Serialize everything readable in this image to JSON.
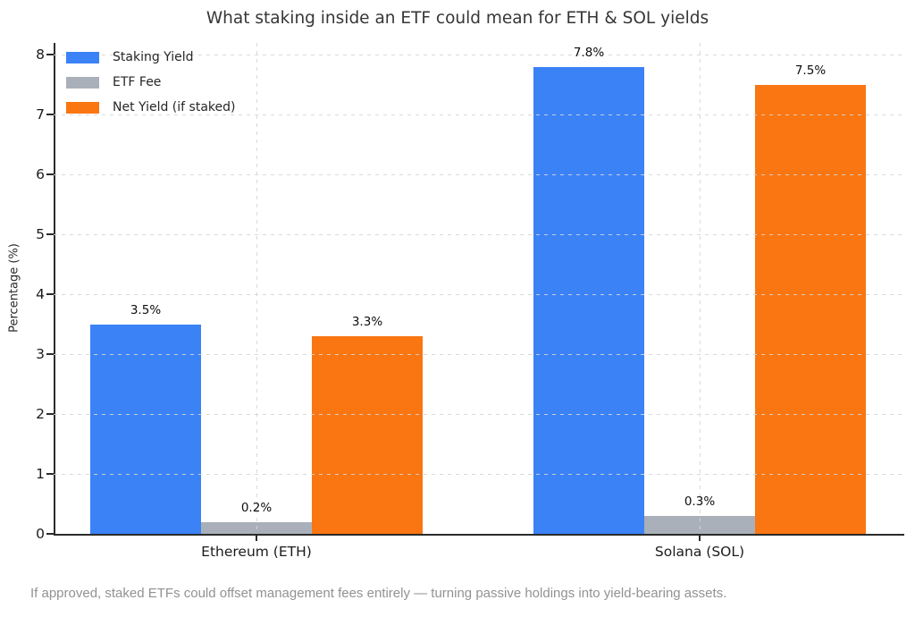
{
  "caption": "If approved, staked ETFs could offset management fees entirely — turning passive holdings into yield-bearing assets.",
  "chart_data": {
    "type": "bar",
    "title": "What staking inside an ETF could mean for ETH & SOL yields",
    "xlabel": "",
    "ylabel": "Percentage (%)",
    "categories": [
      "Ethereum (ETH)",
      "Solana (SOL)"
    ],
    "series": [
      {
        "name": "Staking Yield",
        "color": "#3b82f6",
        "values": [
          3.5,
          7.8
        ],
        "labels": [
          "3.5%",
          "7.8%"
        ]
      },
      {
        "name": "ETF Fee",
        "color": "#a9b0ba",
        "values": [
          0.2,
          0.3
        ],
        "labels": [
          "0.2%",
          "0.3%"
        ]
      },
      {
        "name": "Net Yield (if staked)",
        "color": "#f97612",
        "values": [
          3.3,
          7.5
        ],
        "labels": [
          "3.3%",
          "7.5%"
        ]
      }
    ],
    "ylim": [
      0,
      8.2
    ],
    "yticks": [
      0,
      1,
      2,
      3,
      4,
      5,
      6,
      7,
      8
    ],
    "grid": "dashed",
    "legend_position": "upper-left"
  }
}
